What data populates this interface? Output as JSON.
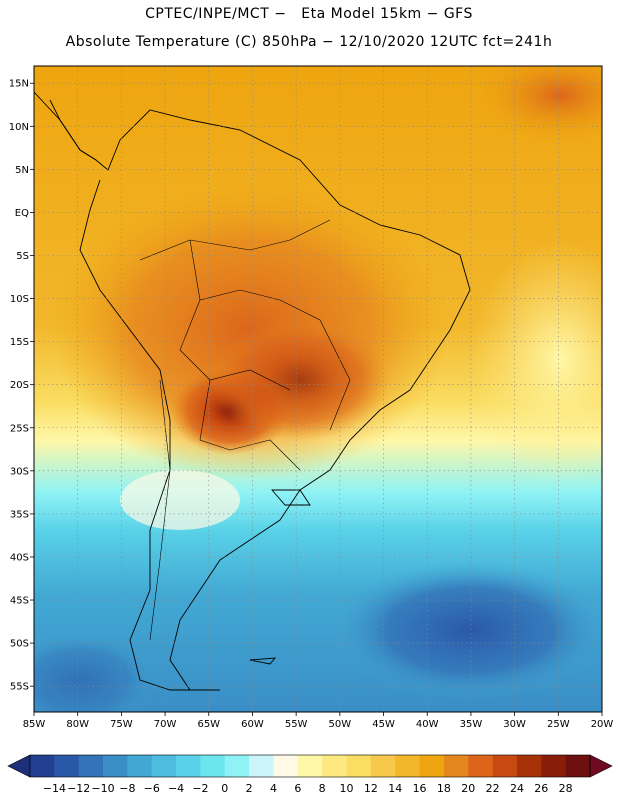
{
  "header": {
    "line1": "CPTEC/INPE/MCT −   Eta Model 15km − GFS",
    "line2": "Absolute Temperature (C) 850hPa − 12/10/2020 12UTC fct=241h"
  },
  "map": {
    "lat_ticks": [
      "15N",
      "10N",
      "5N",
      "EQ",
      "5S",
      "10S",
      "15S",
      "20S",
      "25S",
      "30S",
      "35S",
      "40S",
      "45S",
      "50S",
      "55S"
    ],
    "lon_ticks": [
      "85W",
      "80W",
      "75W",
      "70W",
      "65W",
      "60W",
      "55W",
      "50W",
      "45W",
      "40W",
      "35W",
      "30W",
      "25W",
      "20W"
    ],
    "lon_range": [
      -85,
      -20
    ],
    "lat_range": [
      -58,
      17
    ]
  },
  "colorbar": {
    "labels": [
      "−14",
      "−12",
      "−10",
      "−8",
      "−6",
      "−4",
      "−2",
      "0",
      "2",
      "4",
      "6",
      "8",
      "10",
      "12",
      "14",
      "16",
      "18",
      "20",
      "22",
      "24",
      "26",
      "28"
    ],
    "colors": [
      "#233f8f",
      "#2a58a8",
      "#3373b8",
      "#3a8ec6",
      "#42a8d3",
      "#4cbcdf",
      "#59d1e8",
      "#6de5ef",
      "#8ff3f5",
      "#ccf5fb",
      "#fff9e5",
      "#fff7a8",
      "#fde980",
      "#fadd62",
      "#f6c94a",
      "#f2b72b",
      "#eea50f",
      "#e6861e",
      "#dc651a",
      "#c84a12",
      "#a83208",
      "#8a1d0a",
      "#6e0f10"
    ],
    "low_arrow_color": "#1d2f78",
    "high_arrow_color": "#6e0b22"
  }
}
